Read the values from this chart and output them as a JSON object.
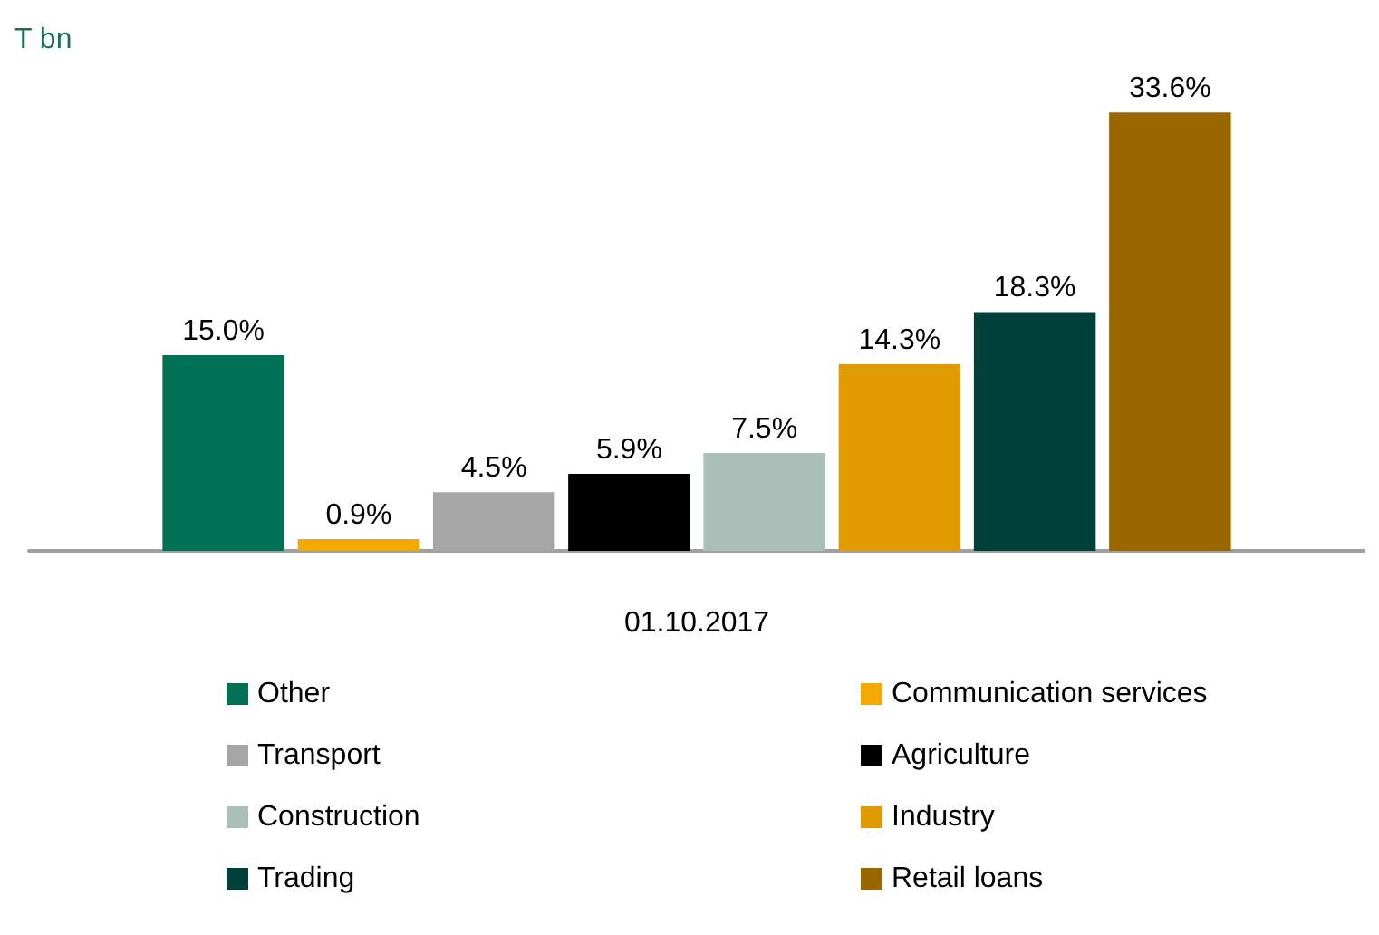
{
  "chart_data": {
    "type": "bar",
    "ylabel": "T bn",
    "xlabel": "01.10.2017",
    "categories": [
      null
    ],
    "series": [
      {
        "name": "Other",
        "color": "#007055",
        "values": [
          15.0
        ],
        "value_labels": [
          "15.0%"
        ]
      },
      {
        "name": "Communication services",
        "color": "#f2a900",
        "values": [
          0.9
        ],
        "value_labels": [
          "0.9%"
        ]
      },
      {
        "name": "Transport",
        "color": "#a5a5a5",
        "values": [
          4.5
        ],
        "value_labels": [
          "4.5%"
        ]
      },
      {
        "name": "Agriculture",
        "color": "#000000",
        "values": [
          5.9
        ],
        "value_labels": [
          "5.9%"
        ]
      },
      {
        "name": "Construction",
        "color": "#a9bfb7",
        "values": [
          7.5
        ],
        "value_labels": [
          "7.5%"
        ]
      },
      {
        "name": "Industry",
        "color": "#e09b00",
        "values": [
          14.3
        ],
        "value_labels": [
          "14.3%"
        ]
      },
      {
        "name": "Trading",
        "color": "#00403a",
        "values": [
          18.3
        ],
        "value_labels": [
          "18.3%"
        ]
      },
      {
        "name": "Retail loans",
        "color": "#996600",
        "values": [
          33.6
        ],
        "value_labels": [
          "33.6%"
        ]
      }
    ],
    "legend": "bottom",
    "grid": false
  }
}
